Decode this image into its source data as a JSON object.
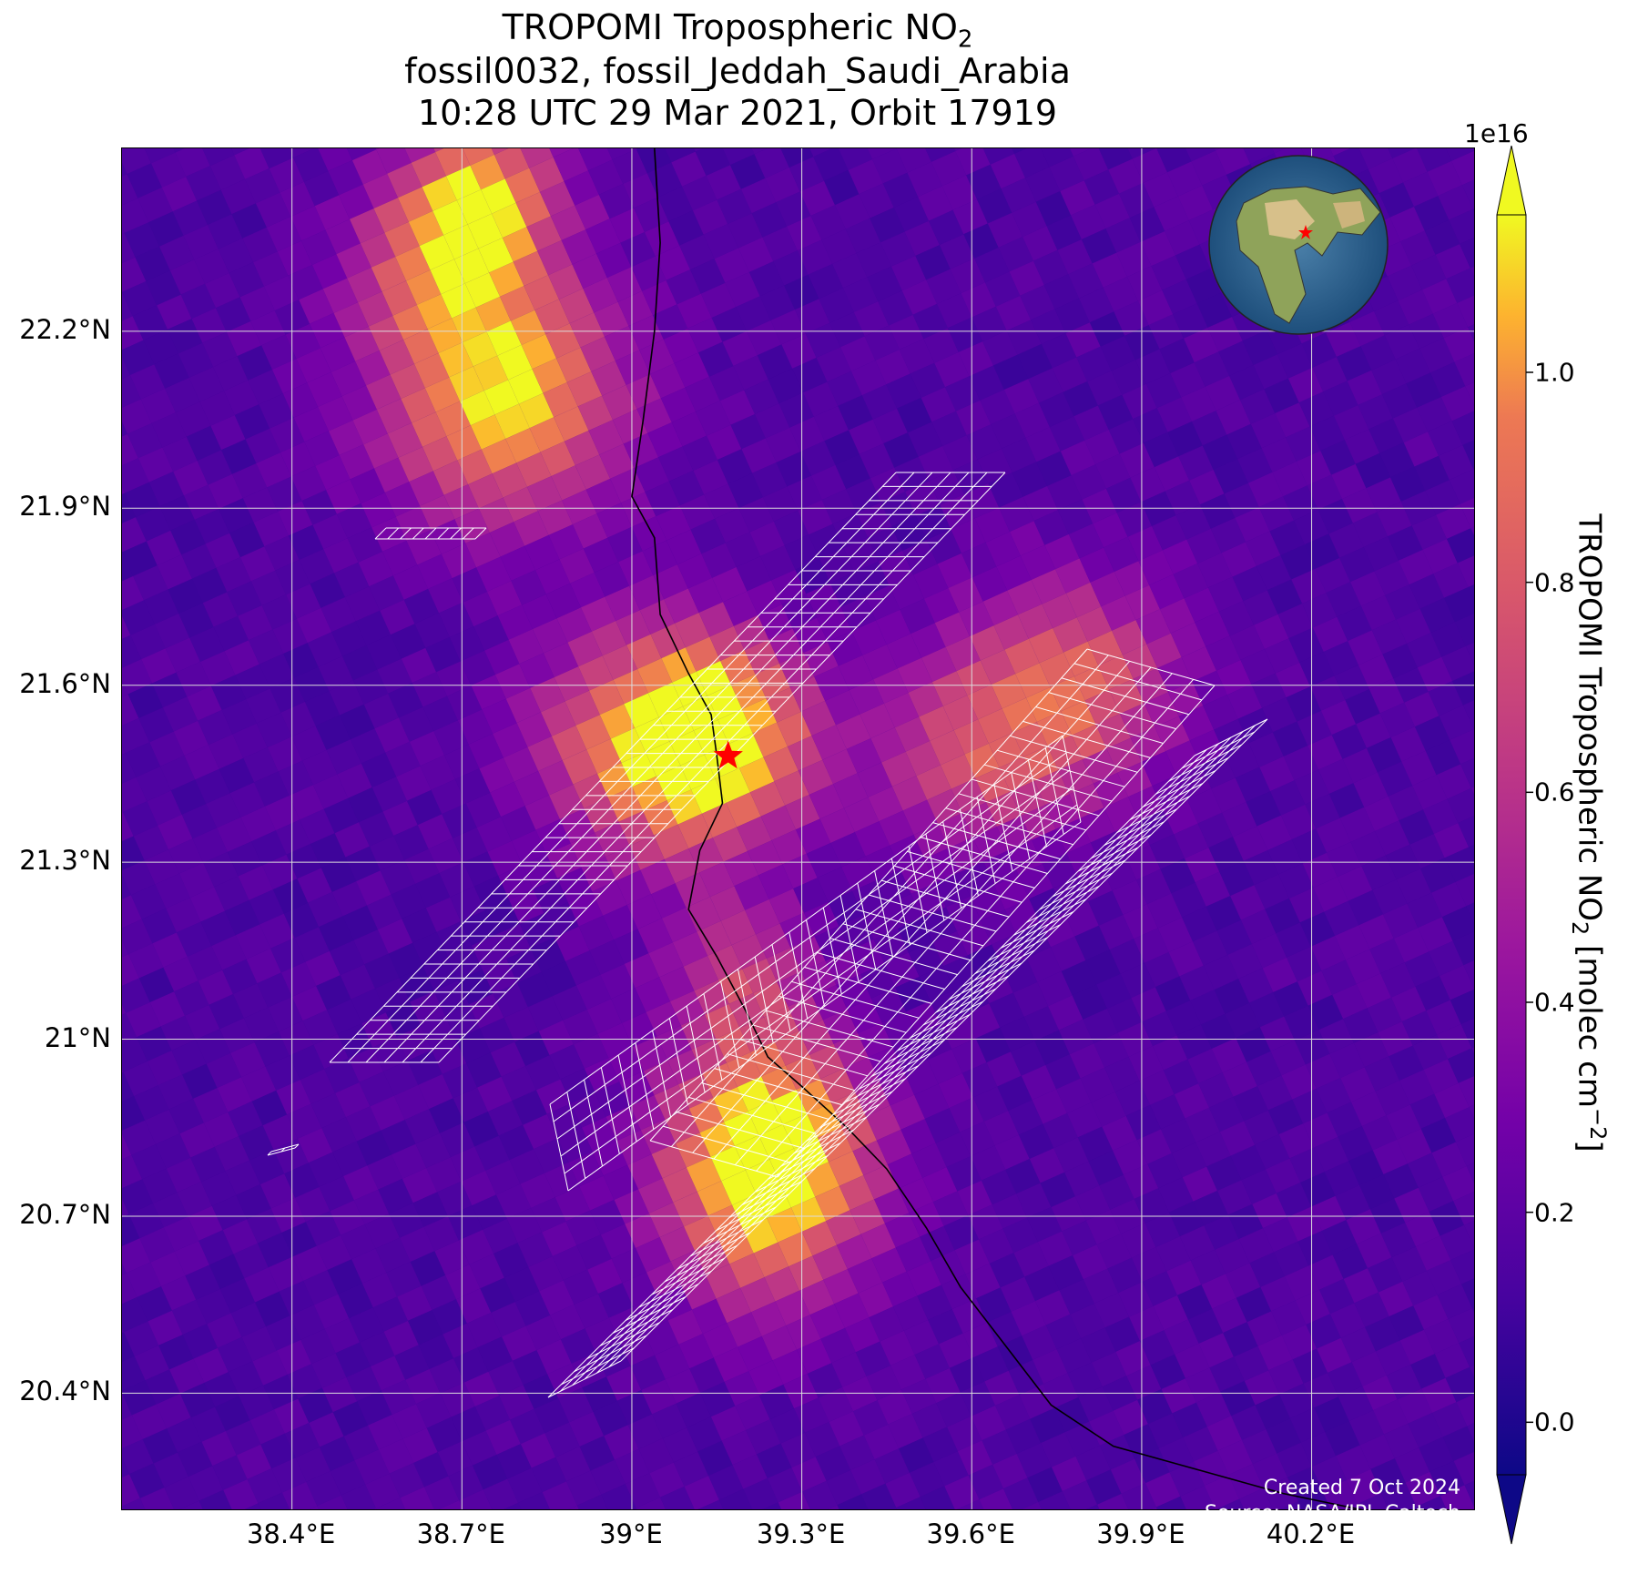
{
  "title": {
    "line1_prefix": "TROPOMI Tropospheric NO",
    "line1_sub": "2",
    "line2": "fossil0032, fossil_Jeddah_Saudi_Arabia",
    "line3": "10:28 UTC 29 Mar 2021, Orbit 17919"
  },
  "axes": {
    "lat_labels": [
      "22.2°N",
      "21.9°N",
      "21.6°N",
      "21.3°N",
      "21°N",
      "20.7°N",
      "20.4°N"
    ],
    "lat_values": [
      22.2,
      21.9,
      21.6,
      21.3,
      21.0,
      20.7,
      20.4
    ],
    "lon_labels": [
      "38.4°E",
      "38.7°E",
      "39°E",
      "39.3°E",
      "39.6°E",
      "39.9°E",
      "40.2°E"
    ],
    "lon_values": [
      38.4,
      38.7,
      39.0,
      39.3,
      39.6,
      39.9,
      40.2
    ],
    "lon_range": [
      38.1,
      40.49
    ],
    "lat_range": [
      20.2,
      22.51
    ]
  },
  "site": {
    "lon": 39.17,
    "lat": 21.48,
    "marker": "red-star",
    "color": "#ff0000"
  },
  "colorbar": {
    "scale": "1e16",
    "ticks": [
      "0.0",
      "0.2",
      "0.4",
      "0.6",
      "0.8",
      "1.0"
    ],
    "tick_values": [
      0.0,
      0.2,
      0.4,
      0.6,
      0.8,
      1.0
    ],
    "range": [
      -0.05,
      1.15
    ],
    "colormap": "plasma",
    "extend": "both",
    "label_prefix": "TROPOMI Tropospheric NO",
    "label_sub": "2",
    "label_mid": " [molec cm",
    "label_sup": "−2",
    "label_suffix": "]"
  },
  "inset": {
    "content": "globe-locator",
    "marker_color": "#ff0000"
  },
  "footer": {
    "created": "Created 7 Oct 2024",
    "source": "Source: NASA/JPL-Caltech"
  },
  "colors": {
    "grid": "#dddddd",
    "coastline": "#000000",
    "overlay_grid": "#ffffff"
  }
}
